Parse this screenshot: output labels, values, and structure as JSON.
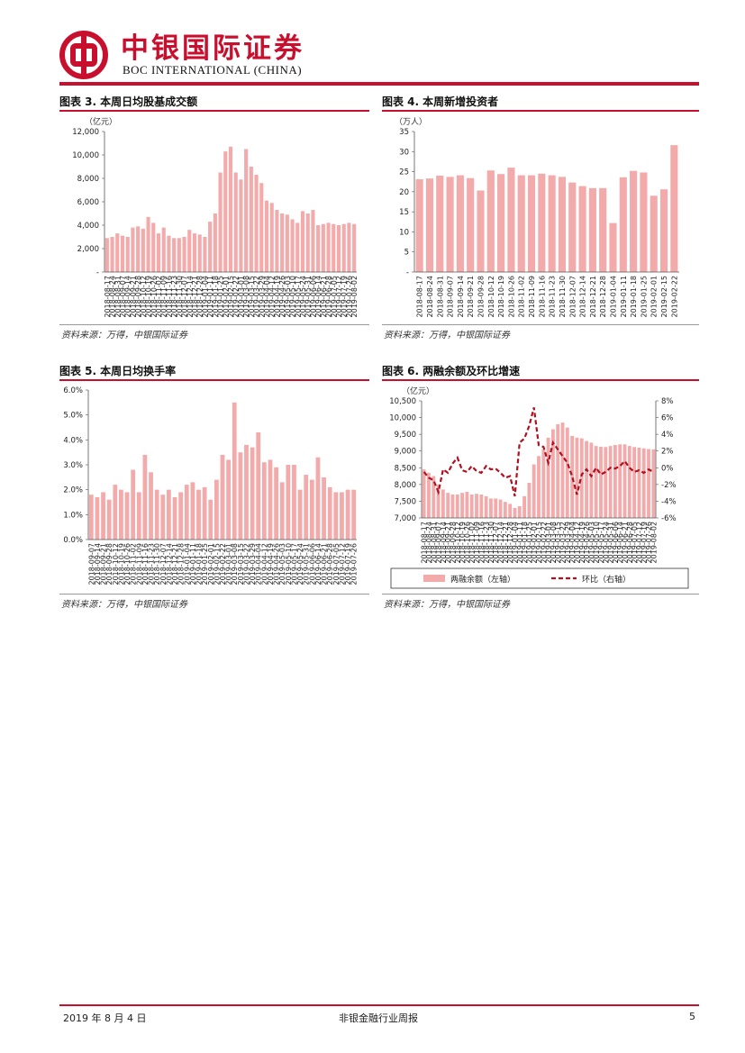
{
  "header": {
    "brand_cn": "中银国际证券",
    "brand_en": "BOC INTERNATIONAL (CHINA)",
    "colors": {
      "brand": "#c8102e"
    }
  },
  "source_note": "资料来源：万得，中银国际证券",
  "footer": {
    "date": "2019 年 8 月 4 日",
    "title": "非银金融行业周报",
    "page": "5"
  },
  "panels": [
    {
      "label": "图表 3.",
      "title": "本周日均股基成交额"
    },
    {
      "label": "图表 4.",
      "title": "本周新增投资者"
    },
    {
      "label": "图表 5.",
      "title": "本周日均换手率"
    },
    {
      "label": "图表 6.",
      "title": "两融余额及环比增速"
    }
  ],
  "chart_data": [
    {
      "type": "bar",
      "unit": "（亿元）",
      "ylim": [
        0,
        12000
      ],
      "yticks": [
        "-",
        "2,000",
        "4,000",
        "6,000",
        "8,000",
        "10,000",
        "12,000"
      ],
      "ytick_values": [
        0,
        2000,
        4000,
        6000,
        8000,
        10000,
        12000
      ],
      "bar_color": "#f2aaaa",
      "categories": [
        "2018-08-17",
        "2018-08-24",
        "2018-08-31",
        "2018-09-07",
        "2018-09-14",
        "2018-09-21",
        "2018-09-28",
        "2018-10-12",
        "2018-10-19",
        "2018-10-26",
        "2018-11-02",
        "2018-11-09",
        "2018-11-16",
        "2018-11-23",
        "2018-11-30",
        "2018-12-07",
        "2018-12-14",
        "2018-12-21",
        "2018-12-28",
        "2019-01-04",
        "2019-01-11",
        "2019-01-18",
        "2019-01-25",
        "2019-02-01",
        "2019-02-15",
        "2019-02-22",
        "2019-03-01",
        "2019-03-08",
        "2019-03-15",
        "2019-03-22",
        "2019-03-29",
        "2019-04-04",
        "2019-04-12",
        "2019-04-19",
        "2019-04-26",
        "2019-05-03",
        "2019-05-10",
        "2019-05-17",
        "2019-05-24",
        "2019-05-31",
        "2019-06-06",
        "2019-06-14",
        "2019-06-21",
        "2019-06-28",
        "2019-07-05",
        "2019-07-12",
        "2019-07-19",
        "2019-07-26",
        "2019-08-02"
      ],
      "values": [
        2900,
        3000,
        3300,
        3100,
        3000,
        3800,
        3900,
        3700,
        4700,
        4200,
        3300,
        3800,
        3100,
        2900,
        2900,
        3000,
        3600,
        3300,
        3200,
        3000,
        4300,
        5000,
        8500,
        10300,
        10700,
        8500,
        7900,
        10500,
        9000,
        8300,
        7600,
        6100,
        5900,
        5300,
        5000,
        4900,
        4500,
        4200,
        5200,
        5000,
        5300,
        4000,
        4100,
        4200,
        4100,
        4000,
        4100,
        4200,
        4100
      ]
    },
    {
      "type": "bar",
      "unit": "（万人）",
      "ylim": [
        0,
        35
      ],
      "yticks": [
        "-",
        "5",
        "10",
        "15",
        "20",
        "25",
        "30",
        "35"
      ],
      "ytick_values": [
        0,
        5,
        10,
        15,
        20,
        25,
        30,
        35
      ],
      "bar_color": "#f2aaaa",
      "categories": [
        "2018-08-17",
        "2018-08-24",
        "2018-08-31",
        "2018-09-07",
        "2018-09-14",
        "2018-09-21",
        "2018-09-28",
        "2018-10-12",
        "2018-10-19",
        "2018-10-26",
        "2018-11-02",
        "2018-11-09",
        "2018-11-16",
        "2018-11-23",
        "2018-11-30",
        "2018-12-07",
        "2018-12-14",
        "2018-12-21",
        "2018-12-28",
        "2019-01-04",
        "2019-01-11",
        "2019-01-18",
        "2019-01-25",
        "2019-02-01",
        "2019-02-15",
        "2019-02-22"
      ],
      "values": [
        23.1,
        23.3,
        24.0,
        23.7,
        24.1,
        23.4,
        20.3,
        25.3,
        24.4,
        26.0,
        24.1,
        24.1,
        24.5,
        24.1,
        23.7,
        22.3,
        21.4,
        20.9,
        20.9,
        12.2,
        23.6,
        25.2,
        24.8,
        19.0,
        20.6,
        31.6
      ]
    },
    {
      "type": "bar",
      "ylim": [
        0,
        6
      ],
      "yticks": [
        "0.0%",
        "1.0%",
        "2.0%",
        "3.0%",
        "4.0%",
        "5.0%",
        "6.0%"
      ],
      "ytick_values": [
        0,
        1,
        2,
        3,
        4,
        5,
        6
      ],
      "bar_color": "#f2aaaa",
      "categories": [
        "2018-09-07",
        "2018-09-14",
        "2018-09-21",
        "2018-09-28",
        "2018-10-12",
        "2018-10-19",
        "2018-10-26",
        "2018-11-02",
        "2018-11-09",
        "2018-11-16",
        "2018-11-23",
        "2018-11-30",
        "2018-12-07",
        "2018-12-14",
        "2018-12-21",
        "2018-12-28",
        "2019-01-04",
        "2019-01-11",
        "2019-01-18",
        "2019-01-25",
        "2019-02-01",
        "2019-02-15",
        "2019-02-22",
        "2019-03-01",
        "2019-03-08",
        "2019-03-15",
        "2019-03-22",
        "2019-03-29",
        "2019-04-04",
        "2019-04-12",
        "2019-04-19",
        "2019-04-26",
        "2019-05-03",
        "2019-05-10",
        "2019-05-17",
        "2019-05-24",
        "2019-05-31",
        "2019-06-06",
        "2019-06-14",
        "2019-06-21",
        "2019-06-28",
        "2019-07-05",
        "2019-07-12",
        "2019-07-19",
        "2019-07-26"
      ],
      "values": [
        1.8,
        1.7,
        1.9,
        1.6,
        2.2,
        2.0,
        1.9,
        2.8,
        1.9,
        3.4,
        2.7,
        2.0,
        1.8,
        2.0,
        1.7,
        1.9,
        2.2,
        2.3,
        2.0,
        2.1,
        1.6,
        2.4,
        3.4,
        3.2,
        5.5,
        3.5,
        3.8,
        3.7,
        4.3,
        3.1,
        3.2,
        2.9,
        2.3,
        3.0,
        3.0,
        2.0,
        2.6,
        2.4,
        3.3,
        2.5,
        2.1,
        1.9,
        1.9,
        2.0,
        2.0
      ]
    },
    {
      "type": "bar+line",
      "unit": "（亿元）",
      "ylim": [
        7000,
        10500
      ],
      "y2lim": [
        -6,
        8
      ],
      "yticks": [
        "7,000",
        "7,500",
        "8,000",
        "8,500",
        "9,000",
        "9,500",
        "10,000",
        "10,500"
      ],
      "ytick_values": [
        7000,
        7500,
        8000,
        8500,
        9000,
        9500,
        10000,
        10500
      ],
      "y2ticks": [
        "-6%",
        "-4%",
        "-2%",
        "0%",
        "2%",
        "4%",
        "6%",
        "8%"
      ],
      "y2tick_values": [
        -6,
        -4,
        -2,
        0,
        2,
        4,
        6,
        8
      ],
      "legend": {
        "bar": "两融余额（左轴）",
        "line": "环比（右轴）",
        "position": "bottom"
      },
      "bar_color": "#f2aaaa",
      "line_color": "#b01020",
      "categories": [
        "2018-08-17",
        "2018-08-24",
        "2018-08-31",
        "2018-09-07",
        "2018-09-14",
        "2018-09-21",
        "2018-09-28",
        "2018-10-12",
        "2018-10-19",
        "2018-10-26",
        "2018-11-02",
        "2018-11-09",
        "2018-11-16",
        "2018-11-23",
        "2018-11-30",
        "2018-12-07",
        "2018-12-14",
        "2018-12-21",
        "2018-12-28",
        "2019-01-04",
        "2019-01-11",
        "2019-01-18",
        "2019-01-25",
        "2019-02-01",
        "2019-02-15",
        "2019-02-22",
        "2019-03-01",
        "2019-03-08",
        "2019-03-15",
        "2019-03-22",
        "2019-03-29",
        "2019-04-04",
        "2019-04-12",
        "2019-04-19",
        "2019-04-26",
        "2019-05-03",
        "2019-05-10",
        "2019-05-17",
        "2019-05-24",
        "2019-05-31",
        "2019-06-06",
        "2019-06-14",
        "2019-06-21",
        "2019-06-28",
        "2019-07-05",
        "2019-07-12",
        "2019-07-19",
        "2019-07-26",
        "2019-08-02"
      ],
      "balance": [
        8450,
        8350,
        8250,
        8000,
        7850,
        7750,
        7700,
        7700,
        7750,
        7780,
        7700,
        7720,
        7700,
        7650,
        7580,
        7580,
        7550,
        7480,
        7420,
        7300,
        7350,
        7650,
        8050,
        8600,
        8850,
        9050,
        9400,
        9650,
        9800,
        9850,
        9700,
        9450,
        9400,
        9380,
        9300,
        9250,
        9150,
        9130,
        9120,
        9150,
        9180,
        9200,
        9200,
        9150,
        9120,
        9100,
        9080,
        9060,
        9050
      ],
      "growth": [
        -0.5,
        -1.2,
        -1.5,
        -2.9,
        -0.2,
        -0.6,
        0.5,
        1.2,
        -0.3,
        -0.5,
        0.2,
        -0.4,
        -0.6,
        0.2,
        -0.2,
        -0.1,
        -0.6,
        -1.2,
        -1.0,
        -3.4,
        3.0,
        3.5,
        5.0,
        7.2,
        2.7,
        2.5,
        0.6,
        3.0,
        2.2,
        1.4,
        0.6,
        -1.0,
        -3.2,
        -0.8,
        -0.2,
        -1.0,
        0.0,
        -0.8,
        -0.5,
        0.0,
        -0.1,
        0.2,
        0.8,
        0.0,
        -0.5,
        -0.3,
        -0.6,
        -0.2,
        -0.5
      ]
    }
  ]
}
